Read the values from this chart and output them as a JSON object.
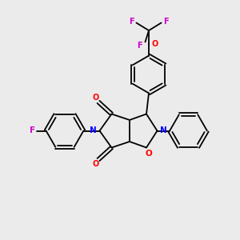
{
  "background_color": "#ebebeb",
  "bond_color": "#000000",
  "N_color": "#0000ff",
  "O_color": "#ff0000",
  "F_color": "#cc00cc",
  "figsize": [
    3.0,
    3.0
  ],
  "dpi": 100,
  "xlim": [
    0,
    10
  ],
  "ylim": [
    0,
    10
  ]
}
